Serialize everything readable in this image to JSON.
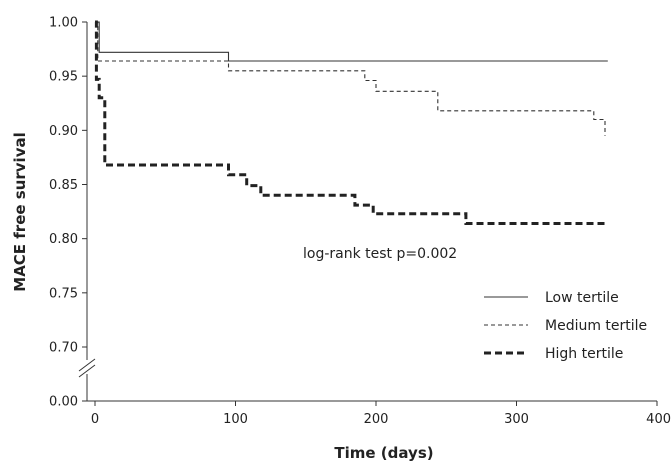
{
  "chart_data": {
    "type": "line",
    "title": "",
    "xlabel": "Time (days)",
    "ylabel": "MACE free survival",
    "xlim": [
      0,
      400
    ],
    "ylim": [
      0.65,
      1.0
    ],
    "y_axis_break": {
      "below": 0.7,
      "bottom_tick": 0.0
    },
    "x_ticks": [
      0,
      100,
      200,
      300,
      400
    ],
    "x_tick_labels": [
      "0",
      "100",
      "200",
      "300",
      "400"
    ],
    "y_ticks": [
      1.0,
      0.95,
      0.9,
      0.85,
      0.8,
      0.75,
      0.7
    ],
    "y_tick_labels": [
      "1.00",
      "0.95",
      "0.90",
      "0.85",
      "0.80",
      "0.75",
      "0.70"
    ],
    "y_bottom_tick_label": "0.00",
    "grid": false,
    "legend_position": "bottom-right",
    "annotation": "log-rank test p=0.002",
    "series": [
      {
        "name": "Low tertile",
        "style": "solid",
        "color": "#333333",
        "points": [
          [
            0,
            1.0
          ],
          [
            3,
            1.0
          ],
          [
            3,
            0.972
          ],
          [
            95,
            0.972
          ],
          [
            95,
            0.964
          ],
          [
            365,
            0.964
          ]
        ]
      },
      {
        "name": "Medium tertile",
        "style": "dashed",
        "color": "#333333",
        "points": [
          [
            0,
            1.0
          ],
          [
            2,
            1.0
          ],
          [
            2,
            0.964
          ],
          [
            95,
            0.964
          ],
          [
            95,
            0.955
          ],
          [
            192,
            0.955
          ],
          [
            192,
            0.946
          ],
          [
            200,
            0.946
          ],
          [
            200,
            0.936
          ],
          [
            244,
            0.936
          ],
          [
            244,
            0.918
          ],
          [
            355,
            0.918
          ],
          [
            355,
            0.91
          ],
          [
            363,
            0.91
          ],
          [
            363,
            0.895
          ]
        ]
      },
      {
        "name": "High tertile",
        "style": "bold-dashed",
        "color": "#222222",
        "points": [
          [
            0,
            1.0
          ],
          [
            1,
            1.0
          ],
          [
            1,
            0.947
          ],
          [
            3,
            0.947
          ],
          [
            3,
            0.93
          ],
          [
            7,
            0.93
          ],
          [
            7,
            0.868
          ],
          [
            95,
            0.868
          ],
          [
            95,
            0.859
          ],
          [
            108,
            0.859
          ],
          [
            108,
            0.849
          ],
          [
            118,
            0.849
          ],
          [
            118,
            0.84
          ],
          [
            185,
            0.84
          ],
          [
            185,
            0.831
          ],
          [
            198,
            0.831
          ],
          [
            198,
            0.823
          ],
          [
            264,
            0.823
          ],
          [
            264,
            0.814
          ],
          [
            365,
            0.814
          ]
        ]
      }
    ]
  }
}
